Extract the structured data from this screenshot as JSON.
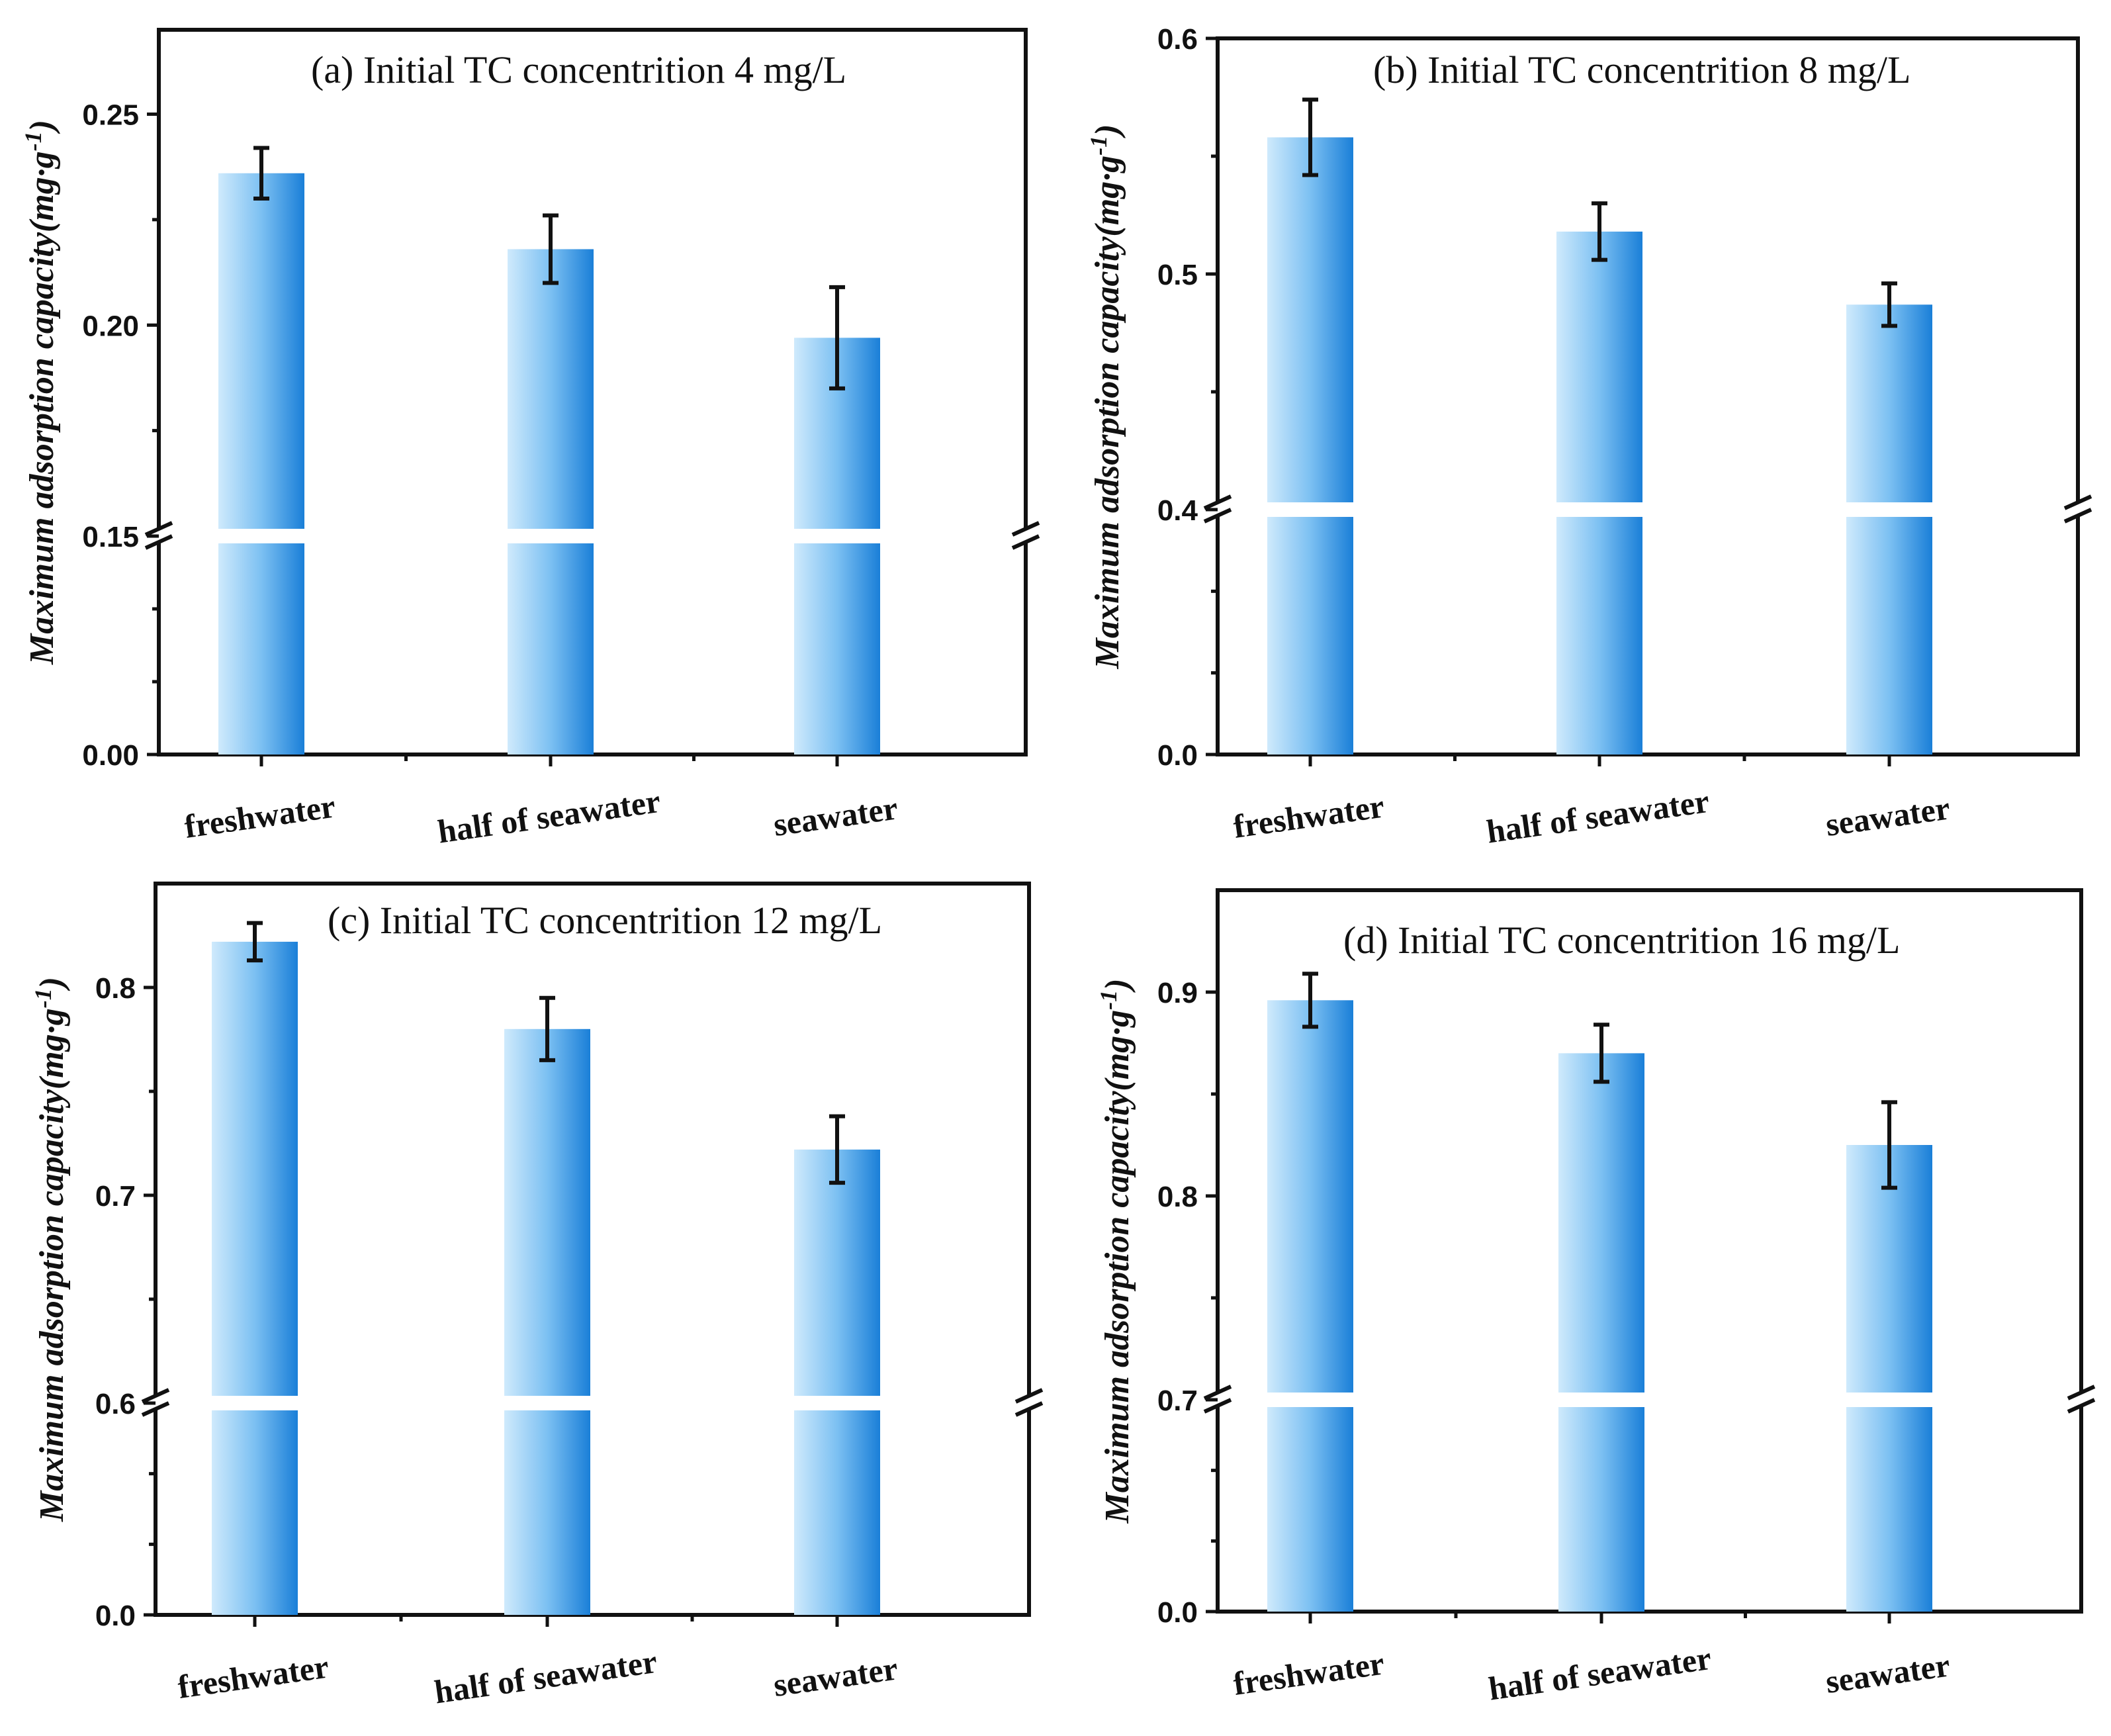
{
  "figure": {
    "bar_colors": {
      "light": "#cfeafc",
      "mid": "#7cc0f2",
      "dark": "#1a7fd8"
    },
    "axis_label_main": "Maximum adsorption capacity",
    "axis_label_unit": "(mg·g",
    "axis_label_sup": "-1",
    "axis_label_close": ")"
  },
  "chart_data": [
    {
      "type": "bar",
      "title": "(a) Initial TC concentrition 4 mg/L",
      "ylabel": "Maximum adsorption capacity(mg·g-1)",
      "categories": [
        "freshwater",
        "half of seawater",
        "seawater"
      ],
      "values": [
        0.236,
        0.218,
        0.197
      ],
      "errors": [
        0.006,
        0.008,
        0.012
      ],
      "axis_break": {
        "lower": [
          0,
          0.15
        ],
        "upper": [
          0.15,
          0.27
        ]
      },
      "ytick_labels": [
        "0.00",
        "0.15",
        "0.20",
        "0.25"
      ],
      "ytick_values": [
        0,
        0.15,
        0.2,
        0.25
      ]
    },
    {
      "type": "bar",
      "title": "(b) Initial TC concentrition 8 mg/L",
      "ylabel": "Maximum adsorption capacity(mg·g-1)",
      "categories": [
        "freshwater",
        "half of seawater",
        "seawater"
      ],
      "values": [
        0.558,
        0.518,
        0.487
      ],
      "errors": [
        0.016,
        0.012,
        0.009
      ],
      "axis_break": {
        "lower": [
          0,
          0.4
        ],
        "upper": [
          0.4,
          0.6
        ]
      },
      "ytick_labels": [
        "0.0",
        "0.4",
        "0.5",
        "0.6"
      ],
      "ytick_values": [
        0,
        0.4,
        0.5,
        0.6
      ]
    },
    {
      "type": "bar",
      "title": "(c) Initial TC concentrition 12 mg/L",
      "ylabel": "Maximum adsorption capacity(mg·g-1)",
      "categories": [
        "freshwater",
        "half of seawater",
        "seawater"
      ],
      "values": [
        0.822,
        0.78,
        0.722
      ],
      "errors": [
        0.009,
        0.015,
        0.016
      ],
      "axis_break": {
        "lower": [
          0,
          0.6
        ],
        "upper": [
          0.6,
          0.85
        ]
      },
      "ytick_labels": [
        "0.0",
        "0.6",
        "0.7",
        "0.8"
      ],
      "ytick_values": [
        0,
        0.6,
        0.7,
        0.8
      ]
    },
    {
      "type": "bar",
      "title": "(d) Initial TC concentrition 16 mg/L",
      "ylabel": "Maximum adsorption capacity(mg·g-1)",
      "categories": [
        "freshwater",
        "half of seawater",
        "seawater"
      ],
      "values": [
        0.896,
        0.87,
        0.825
      ],
      "errors": [
        0.013,
        0.014,
        0.021
      ],
      "axis_break": {
        "lower": [
          0,
          0.7
        ],
        "upper": [
          0.7,
          0.95
        ]
      },
      "ytick_labels": [
        "0.0",
        "0.7",
        "0.8",
        "0.9"
      ],
      "ytick_values": [
        0,
        0.7,
        0.8,
        0.9
      ]
    }
  ]
}
